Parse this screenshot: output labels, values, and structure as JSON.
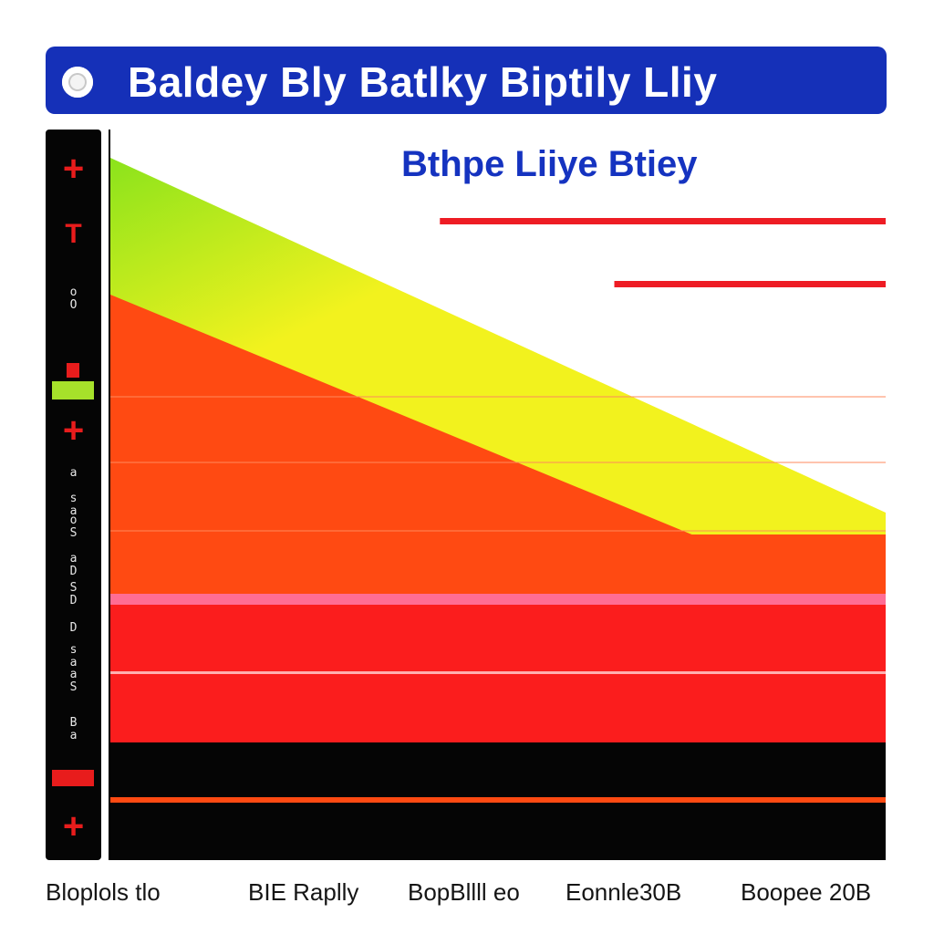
{
  "header": {
    "title": "Baldey Bly Batlky Biptily Lliy",
    "icon": "circle-icon"
  },
  "sidebar": {
    "marks": [
      "+",
      "T",
      "o\nO",
      "+",
      "+"
    ],
    "ticks": [
      "a",
      "s\na",
      "o\nS",
      "a\nD",
      "S\nD",
      "D",
      "s\na",
      "a\nS",
      "B\na"
    ]
  },
  "chart_data": {
    "type": "area",
    "subtitle": "Bthpe Liiye Btiey",
    "categories": [
      "Bloplols tlo",
      "BIE Raplly",
      "BopBllll eo",
      "Eonnle30B",
      "Boopee 20B"
    ],
    "colors": {
      "green": "#8be31c",
      "yellow": "#f2f21e",
      "orange": "#ff4a12",
      "red": "#fb1d1d",
      "pink": "#ff6d94",
      "black": "#050505",
      "line": "#ee1c24"
    },
    "reference_lines": [
      {
        "x_start": 1.7,
        "x_end": 4.0
      },
      {
        "x_start": 2.6,
        "x_end": 4.0
      }
    ]
  }
}
